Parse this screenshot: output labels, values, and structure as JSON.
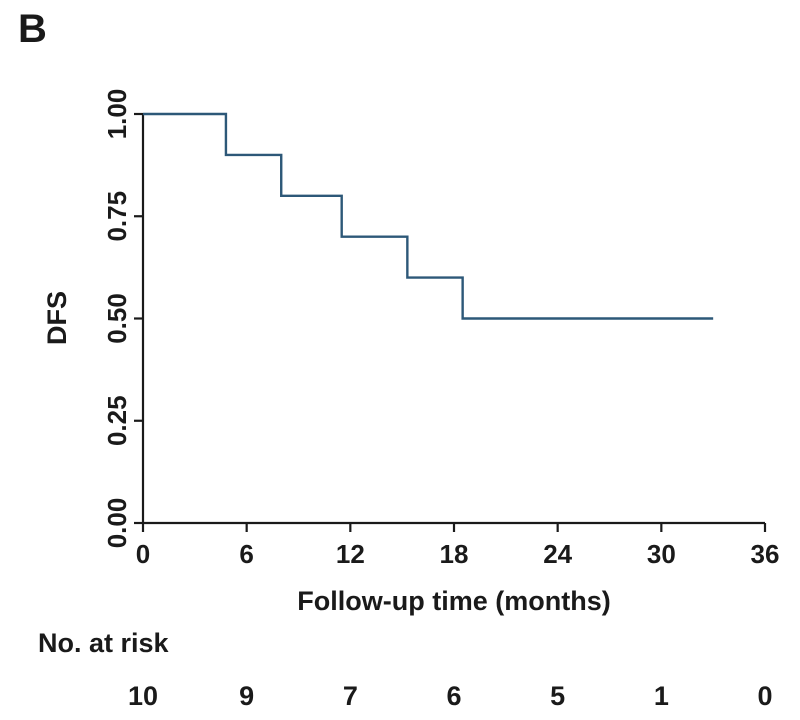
{
  "panel_label": "B",
  "colors": {
    "line": "#2d5878",
    "axis": "#1a1a1a"
  },
  "chart_data": {
    "type": "line",
    "step": true,
    "title": "",
    "xlabel": "Follow-up time (months)",
    "ylabel": "DFS",
    "xlim": [
      0,
      36
    ],
    "ylim": [
      0,
      1
    ],
    "x_ticks": [
      0,
      6,
      12,
      18,
      24,
      30,
      36
    ],
    "y_ticks": [
      0.0,
      0.25,
      0.5,
      0.75,
      1.0
    ],
    "x_tick_labels": [
      "0",
      "6",
      "12",
      "18",
      "24",
      "30",
      "36"
    ],
    "y_tick_labels": [
      "0.00",
      "0.25",
      "0.50",
      "0.75",
      "1.00"
    ],
    "grid": false,
    "series": [
      {
        "x": [
          0,
          4.8,
          8.0,
          11.5,
          15.3,
          18.5,
          33.0
        ],
        "y": [
          1.0,
          0.9,
          0.8,
          0.7,
          0.6,
          0.5,
          0.5
        ]
      }
    ],
    "risk_table": {
      "title": "No. at risk",
      "times": [
        0,
        6,
        12,
        18,
        24,
        30,
        36
      ],
      "values": [
        "10",
        "9",
        "7",
        "6",
        "5",
        "1",
        "0"
      ]
    }
  }
}
